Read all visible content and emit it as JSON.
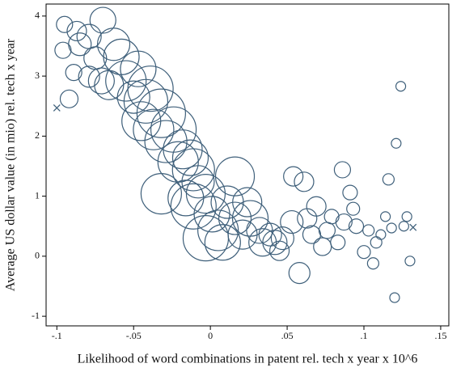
{
  "chart_data": {
    "type": "scatter",
    "xlabel": "Likelihood of word combinations in patent rel. tech x year x 10^6",
    "ylabel": "Average US dollar value (in mio) rel. tech x year",
    "xlim": [
      -0.107,
      0.1553
    ],
    "ylim": [
      -1.16,
      4.2
    ],
    "xticks": [
      {
        "value": -0.1,
        "label": "-.1"
      },
      {
        "value": -0.05,
        "label": "-.05"
      },
      0,
      {
        "value": 0.05,
        "label": ".05"
      },
      {
        "value": 0.1,
        "label": ".1"
      },
      {
        "value": 0.15,
        "label": ".15"
      }
    ],
    "yticks": [
      -1,
      0,
      1,
      2,
      3,
      4
    ],
    "series": [
      {
        "marker": "circle",
        "color": "#3e5f7a",
        "x": [
          -0.095,
          -0.087,
          -0.096,
          -0.085,
          -0.079,
          -0.07,
          -0.089,
          -0.092,
          -0.079,
          -0.075,
          -0.071,
          -0.063,
          -0.058,
          -0.066,
          -0.055,
          -0.047,
          -0.05,
          -0.042,
          -0.039,
          -0.045,
          -0.037,
          -0.032,
          -0.029,
          -0.024,
          -0.018,
          -0.021,
          -0.013,
          -0.011,
          -0.008,
          -0.016,
          -0.011,
          -0.003,
          0.001,
          0.005,
          -0.003,
          0.008,
          0.016,
          0.016,
          0.021,
          0.026,
          0.032,
          0.034,
          0.042,
          0.047,
          0.039,
          0.045,
          0.053,
          0.054,
          0.061,
          0.058,
          0.063,
          0.066,
          0.069,
          0.073,
          0.076,
          0.079,
          0.083,
          0.086,
          0.087,
          0.091,
          0.093,
          0.095,
          0.1,
          0.103,
          0.106,
          0.108,
          0.111,
          0.114,
          0.116,
          0.118,
          0.121,
          0.124,
          0.12,
          0.126,
          0.128,
          0.13,
          -0.032,
          0.011,
          0.024
        ],
        "values": [
          3.86,
          3.75,
          3.43,
          3.53,
          3.66,
          3.93,
          3.06,
          2.62,
          2.99,
          3.3,
          2.92,
          3.53,
          3.32,
          2.85,
          2.92,
          3.12,
          2.65,
          2.58,
          2.79,
          2.25,
          2.11,
          2.38,
          1.91,
          2.11,
          1.78,
          1.57,
          1.64,
          1.44,
          1.24,
          0.97,
          0.83,
          1.04,
          0.7,
          0.43,
          0.3,
          0.23,
          1.33,
          0.63,
          0.36,
          0.63,
          0.43,
          0.23,
          0.23,
          0.3,
          0.36,
          0.09,
          0.57,
          1.33,
          1.24,
          -0.28,
          0.63,
          0.36,
          0.83,
          0.16,
          0.43,
          0.66,
          0.23,
          1.44,
          0.57,
          1.06,
          0.79,
          0.5,
          0.07,
          0.43,
          -0.12,
          0.23,
          0.36,
          0.66,
          1.28,
          0.47,
          1.88,
          2.83,
          -0.69,
          0.5,
          0.66,
          -0.08,
          1.04,
          0.9,
          0.9
        ],
        "sizes": [
          10,
          12,
          10,
          14,
          15,
          16,
          10,
          11,
          13,
          14,
          16,
          20,
          22,
          18,
          25,
          22,
          20,
          27,
          28,
          24,
          25,
          30,
          26,
          28,
          24,
          25,
          22,
          26,
          20,
          22,
          28,
          24,
          22,
          25,
          28,
          22,
          24,
          20,
          18,
          22,
          16,
          17,
          15,
          14,
          14,
          12,
          14,
          12,
          12,
          13,
          12,
          11,
          12,
          11,
          10,
          9,
          9,
          10,
          10,
          9,
          8,
          9,
          8,
          7,
          7,
          7,
          6,
          6,
          7,
          6,
          6,
          6,
          6,
          6,
          6,
          6,
          25,
          20,
          18
        ]
      },
      {
        "marker": "x",
        "color": "#3e5f7a",
        "x": [
          -0.1,
          0.132
        ],
        "values": [
          2.47,
          0.48
        ]
      }
    ]
  }
}
